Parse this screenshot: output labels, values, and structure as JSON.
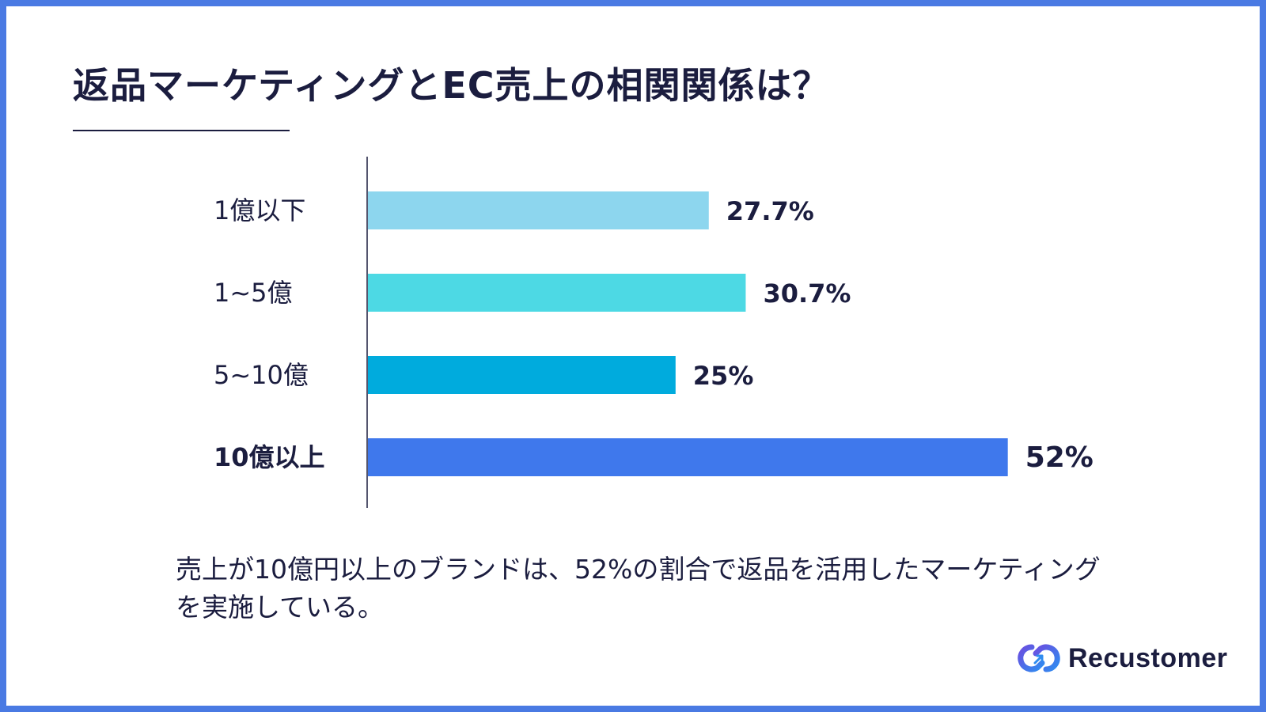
{
  "title": "返品マーケティングとEC売上の相関関係は？",
  "caption": "売上が10億円以上のブランドは、52%の割合で返品を活用したマーケティングを実施している。",
  "brand": {
    "name": "Recustomer",
    "icon": "recustomer-logo-icon",
    "colors": [
      "#6a4fe0",
      "#2f8cf0"
    ]
  },
  "colors": {
    "frame": "#4a7ae3",
    "text": "#1b1d3f"
  },
  "chart_data": {
    "type": "bar",
    "orientation": "horizontal",
    "categories": [
      "1億以下",
      "1~5億",
      "5~10億",
      "10億以上"
    ],
    "values": [
      27.7,
      30.7,
      25,
      52
    ],
    "data_labels": [
      "27.7%",
      "30.7%",
      "25%",
      "52%"
    ],
    "colors": [
      "#8dd6ee",
      "#4dd9e4",
      "#00abdd",
      "#3f78ec"
    ],
    "highlight_index": 3,
    "xlim": [
      0,
      58
    ],
    "unit": "%",
    "grid": false,
    "legend": "none"
  }
}
